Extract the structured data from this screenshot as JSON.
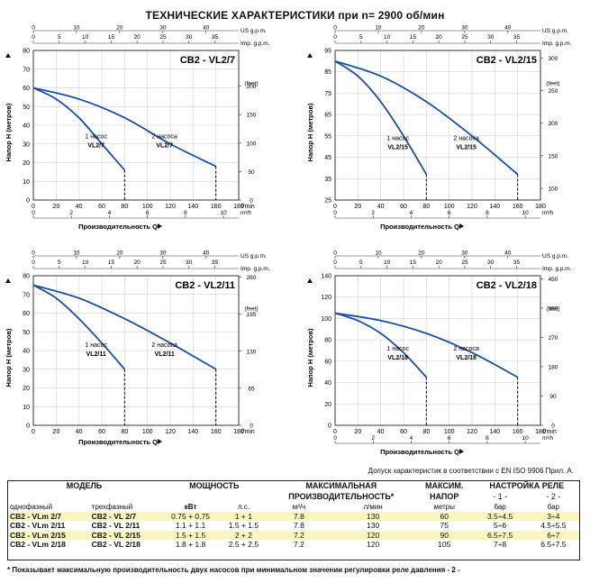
{
  "title": "ТЕХНИЧЕСКИЕ ХАРАКТЕРИСТИКИ при n= 2900 об/мин",
  "chart_data": [
    {
      "type": "line",
      "title": "CB2 - VL2/7",
      "ylabel": "Напор H  (метров)",
      "xlabel": "Производительность Q",
      "ylim": [
        0,
        80
      ],
      "yticks": [
        0,
        10,
        20,
        30,
        40,
        50,
        60,
        70,
        80
      ],
      "xlim": [
        0,
        180
      ],
      "xticks": [
        0,
        20,
        40,
        60,
        80,
        100,
        120,
        140,
        160,
        180
      ],
      "xunit": "l/min",
      "x_m3h_ticks": [
        0,
        2,
        4,
        6,
        8,
        10
      ],
      "x_m3h_unit": "m³/h",
      "us_gpm_ticks": [
        0,
        10,
        20,
        30,
        40
      ],
      "us_gpm_label": "US g.p.m.",
      "imp_gpm_ticks": [
        0,
        5,
        10,
        15,
        20,
        25,
        30,
        35
      ],
      "imp_gpm_label": "Imp. g.p.m.",
      "ylabel_right": "(feet)",
      "feet_ticks": [
        0,
        50,
        100,
        150,
        200
      ],
      "series": [
        {
          "name": "1 насос VL2/7",
          "x": [
            0,
            20,
            40,
            60,
            80
          ],
          "y": [
            60,
            54,
            44,
            30,
            16
          ],
          "dash_to": 80
        },
        {
          "name": "2 насоса VL2/7",
          "x": [
            0,
            40,
            80,
            120,
            160
          ],
          "y": [
            60,
            54,
            44,
            30,
            18
          ],
          "dash_to": 160
        }
      ],
      "labels": [
        {
          "lines": [
            "1 насос",
            "VL2/7"
          ],
          "x": 55,
          "y": 33
        },
        {
          "lines": [
            "2 насоса",
            "VL2/7"
          ],
          "x": 115,
          "y": 33
        }
      ]
    },
    {
      "type": "line",
      "title": "CB2 - VL2/15",
      "ylabel": "Напор H  (метров)",
      "xlabel": "Производительность Q",
      "ylim": [
        25,
        95
      ],
      "yticks": [
        25,
        35,
        45,
        55,
        65,
        75,
        85,
        95
      ],
      "xlim": [
        0,
        180
      ],
      "xticks": [
        0,
        20,
        40,
        60,
        80,
        100,
        120,
        140,
        160,
        180
      ],
      "xunit": "",
      "x_m3h_ticks": [
        0,
        2,
        4,
        6,
        8,
        10
      ],
      "x_m3h_unit": "m³/h",
      "us_gpm_ticks": [
        0,
        10,
        20,
        30,
        40
      ],
      "us_gpm_label": "US g.p.m.",
      "imp_gpm_ticks": [
        0,
        5,
        10,
        15,
        20,
        25,
        30,
        35
      ],
      "imp_gpm_label": "Imp. g.p.m.",
      "ylabel_right": "(feet)",
      "feet_ticks": [
        100,
        150,
        200,
        250,
        300
      ],
      "series": [
        {
          "name": "1 насос VL2/15",
          "x": [
            0,
            20,
            40,
            60,
            80
          ],
          "y": [
            90,
            83,
            71,
            55,
            37
          ],
          "dash_to": 80
        },
        {
          "name": "2 насоса VL2/15",
          "x": [
            0,
            40,
            80,
            120,
            160
          ],
          "y": [
            90,
            83,
            71,
            55,
            37
          ],
          "dash_to": 160
        }
      ],
      "labels": [
        {
          "lines": [
            "1 насос",
            "VL2/15"
          ],
          "x": 55,
          "y": 53
        },
        {
          "lines": [
            "2 насоса",
            "VL2/15"
          ],
          "x": 115,
          "y": 53
        }
      ]
    },
    {
      "type": "line",
      "title": "CB2 - VL2/11",
      "ylabel": "Напор H  (метров)",
      "xlabel": "Производительность Q",
      "ylim": [
        0,
        80
      ],
      "yticks": [
        0,
        10,
        20,
        30,
        40,
        50,
        60,
        70,
        80
      ],
      "xlim": [
        0,
        180
      ],
      "xticks": [
        0,
        20,
        40,
        60,
        80,
        100,
        120,
        140,
        160,
        180
      ],
      "xunit": "l/min",
      "x_m3h_ticks": [],
      "x_m3h_unit": "",
      "us_gpm_ticks": [
        0,
        10,
        20,
        30,
        40
      ],
      "us_gpm_label": "US g.p.m.",
      "imp_gpm_ticks": [
        0,
        5,
        10,
        15,
        20,
        25,
        30,
        35
      ],
      "imp_gpm_label": "Imp. g.p.m.",
      "ylabel_right": "(feet)",
      "feet_ticks": [
        0,
        65,
        130,
        195,
        260
      ],
      "series": [
        {
          "name": "1 насос VL2/11",
          "x": [
            0,
            20,
            40,
            60,
            80
          ],
          "y": [
            75,
            68,
            57,
            44,
            30
          ],
          "dash_to": 80
        },
        {
          "name": "2 насоса VL2/11",
          "x": [
            0,
            40,
            80,
            120,
            160
          ],
          "y": [
            75,
            68,
            57,
            44,
            30
          ],
          "dash_to": 160
        }
      ],
      "labels": [
        {
          "lines": [
            "1 насос",
            "VL2/11"
          ],
          "x": 55,
          "y": 42
        },
        {
          "lines": [
            "2 насоса",
            "VL2/11"
          ],
          "x": 115,
          "y": 42
        }
      ]
    },
    {
      "type": "line",
      "title": "CB2 - VL2/18",
      "ylabel": "Напор H  (метров)",
      "xlabel": "Производительность Q",
      "ylim": [
        0,
        140
      ],
      "yticks": [
        0,
        20,
        40,
        60,
        80,
        100,
        120,
        140
      ],
      "xlim": [
        0,
        180
      ],
      "xticks": [
        0,
        20,
        40,
        60,
        80,
        100,
        120,
        140,
        160,
        180
      ],
      "xunit": "l/min",
      "x_m3h_ticks": [
        0,
        2,
        4,
        6,
        8,
        10
      ],
      "x_m3h_unit": "m³/h",
      "us_gpm_ticks": [
        0,
        10,
        20,
        30,
        40
      ],
      "us_gpm_label": "US g.p.m.",
      "imp_gpm_ticks": [
        0,
        5,
        10,
        15,
        20,
        25,
        30,
        35
      ],
      "imp_gpm_label": "Imp. g.p.m.",
      "ylabel_right": "(feet)",
      "feet_ticks": [
        0,
        90,
        180,
        270,
        360,
        450
      ],
      "series": [
        {
          "name": "1 насос VL2/18",
          "x": [
            0,
            20,
            40,
            60,
            80
          ],
          "y": [
            105,
            98,
            86,
            68,
            45
          ],
          "dash_to": 80
        },
        {
          "name": "2 насоса VL2/18",
          "x": [
            0,
            40,
            80,
            120,
            160
          ],
          "y": [
            105,
            98,
            86,
            68,
            45
          ],
          "dash_to": 160
        }
      ],
      "labels": [
        {
          "lines": [
            "1 насос",
            "VL2/18"
          ],
          "x": 55,
          "y": 70
        },
        {
          "lines": [
            "2 насоса",
            "VL2/18"
          ],
          "x": 115,
          "y": 70
        }
      ]
    }
  ],
  "tolerance_note": "Допуск характеристик в соответствии с EN ISO 9906 Прил.  A.",
  "table": {
    "model_header": "МОДЕЛЬ",
    "power_header": "МОЩНОСТЬ",
    "flow_header_1": "МАКСИМАЛЬНАЯ",
    "flow_header_2": "ПРОИЗВОДИТЕЛЬНОСТЬ*",
    "head_header_1": "МАКСИМ.",
    "head_header_2": "НАПОР",
    "relay_header": "НАСТРОЙКА РЕЛЕ",
    "sub_single": "однофазный",
    "sub_three": "трехфазный",
    "sub_kw": "кВт",
    "sub_hp": "л.с.",
    "sub_m3h": "м³/ч",
    "sub_lmin": "л/мин",
    "sub_head_unit": "метры",
    "sub_relay1_num": "- 1 -",
    "sub_relay1_unit": "бар",
    "sub_relay2_num": "- 2 -",
    "sub_relay2_unit": "бар",
    "rows": [
      {
        "single": "CB2 - VLm 2/7",
        "three": "CB2 - VL 2/7",
        "kw": "0.75 + 0.75",
        "hp": "1 + 1",
        "m3h": "7.8",
        "lmin": "130",
        "head": "60",
        "relay1": "3.5÷4.5",
        "relay2": "3÷4"
      },
      {
        "single": "CB2 - VLm 2/11",
        "three": "CB2 - VL 2/11",
        "kw": "1.1 + 1.1",
        "hp": "1.5 + 1.5",
        "m3h": "7.8",
        "lmin": "130",
        "head": "75",
        "relay1": "5÷6",
        "relay2": "4.5÷5.5"
      },
      {
        "single": "CB2 - VLm 2/15",
        "three": "CB2 - VL 2/15",
        "kw": "1.5 + 1.5",
        "hp": "2 + 2",
        "m3h": "7.2",
        "lmin": "120",
        "head": "90",
        "relay1": "6.5÷7.5",
        "relay2": "6÷7"
      },
      {
        "single": "CB2 - VLm 2/18",
        "three": "CB2 - VL 2/18",
        "kw": "1.8 + 1.8",
        "hp": "2.5 + 2.5",
        "m3h": "7.2",
        "lmin": "120",
        "head": "105",
        "relay1": "7÷8",
        "relay2": "6.5÷7.5"
      }
    ]
  },
  "footnote": "* Показывает максимальную производительность двух насосов при минимальном значении регулировки реле давления - 2 -",
  "colors": {
    "curve": "#1b4fa0",
    "grid": "#c8c8c8",
    "row_highlight": "#fbf4c3"
  }
}
